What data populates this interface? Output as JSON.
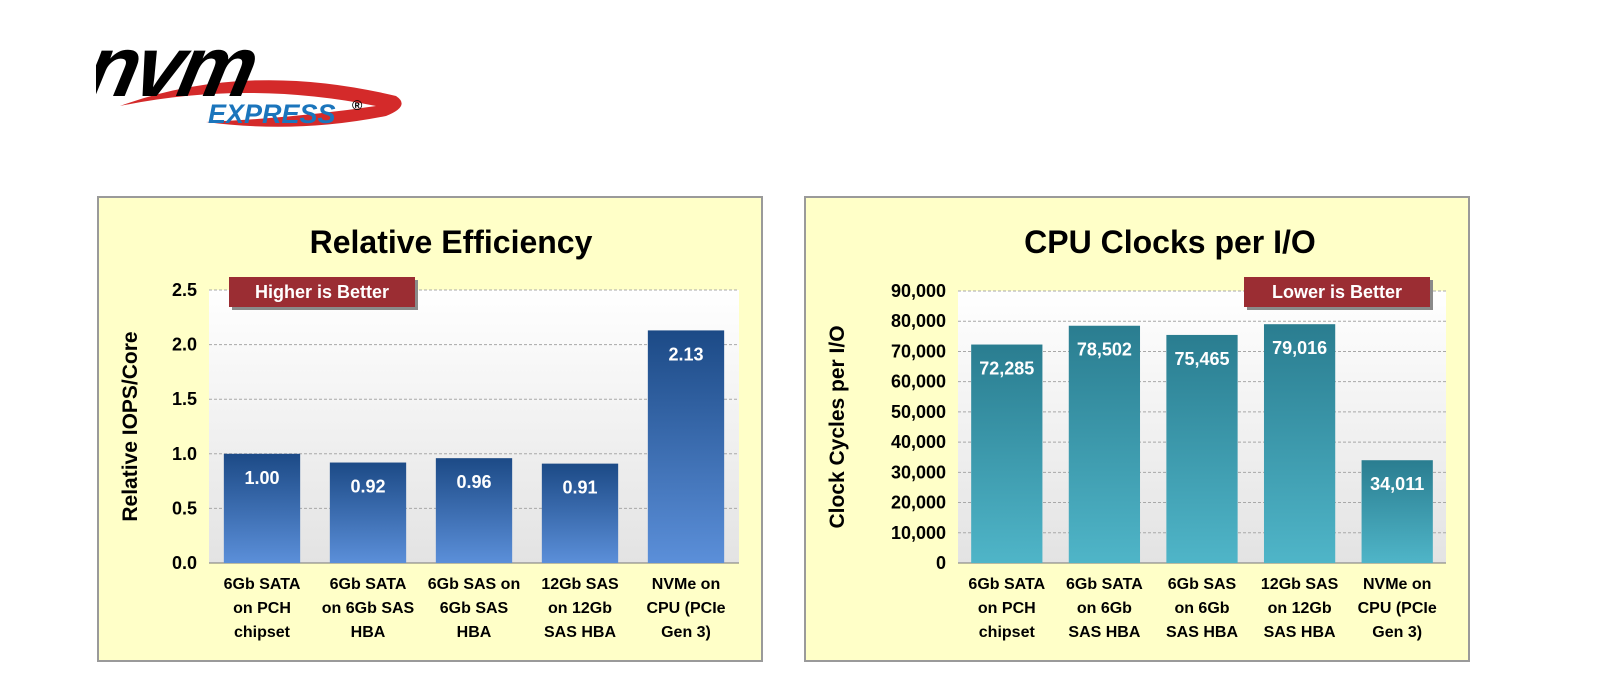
{
  "logo": {
    "word": "nvm",
    "sub": "EXPRESS",
    "mark": "®"
  },
  "colors": {
    "panel_bg": "#ffffc8",
    "badge": "#9b2d33",
    "left_bar_top": "#1c4a86",
    "left_bar_bottom": "#5b8fd9",
    "right_bar_top": "#2a7d90",
    "right_bar_bottom": "#4fb5c8"
  },
  "chart_data": [
    {
      "type": "bar",
      "title": "Relative Efficiency",
      "ylabel": "Relative IOPS/Core",
      "xlabel": "",
      "ylim": [
        0,
        2.5
      ],
      "yticks": [
        "0.0",
        "0.5",
        "1.0",
        "1.5",
        "2.0",
        "2.5"
      ],
      "categories": [
        [
          "6Gb SATA",
          "on PCH",
          "chipset"
        ],
        [
          "6Gb SATA",
          "on 6Gb SAS",
          "HBA"
        ],
        [
          "6Gb SAS on",
          "6Gb SAS",
          "HBA"
        ],
        [
          "12Gb SAS",
          "on 12Gb",
          "SAS HBA"
        ],
        [
          "NVMe on",
          "CPU (PCIe",
          "Gen 3)"
        ]
      ],
      "values": [
        1.0,
        0.92,
        0.96,
        0.91,
        2.13
      ],
      "value_labels": [
        "1.00",
        "0.92",
        "0.96",
        "0.91",
        "2.13"
      ],
      "note": "Higher is Better",
      "grid": true
    },
    {
      "type": "bar",
      "title": "CPU Clocks per I/O",
      "ylabel": "Clock Cycles per I/O",
      "xlabel": "",
      "ylim": [
        0,
        90000
      ],
      "yticks": [
        "0",
        "10,000",
        "20,000",
        "30,000",
        "40,000",
        "50,000",
        "60,000",
        "70,000",
        "80,000",
        "90,000"
      ],
      "categories": [
        [
          "6Gb SATA",
          "on PCH",
          "chipset"
        ],
        [
          "6Gb SATA",
          "on 6Gb",
          "SAS HBA"
        ],
        [
          "6Gb SAS",
          "on 6Gb",
          "SAS HBA"
        ],
        [
          "12Gb SAS",
          "on 12Gb",
          "SAS HBA"
        ],
        [
          "NVMe on",
          "CPU (PCIe",
          "Gen 3)"
        ]
      ],
      "values": [
        72285,
        78502,
        75465,
        79016,
        34011
      ],
      "value_labels": [
        "72,285",
        "78,502",
        "75,465",
        "79,016",
        "34,011"
      ],
      "note": "Lower is Better",
      "grid": true
    }
  ]
}
